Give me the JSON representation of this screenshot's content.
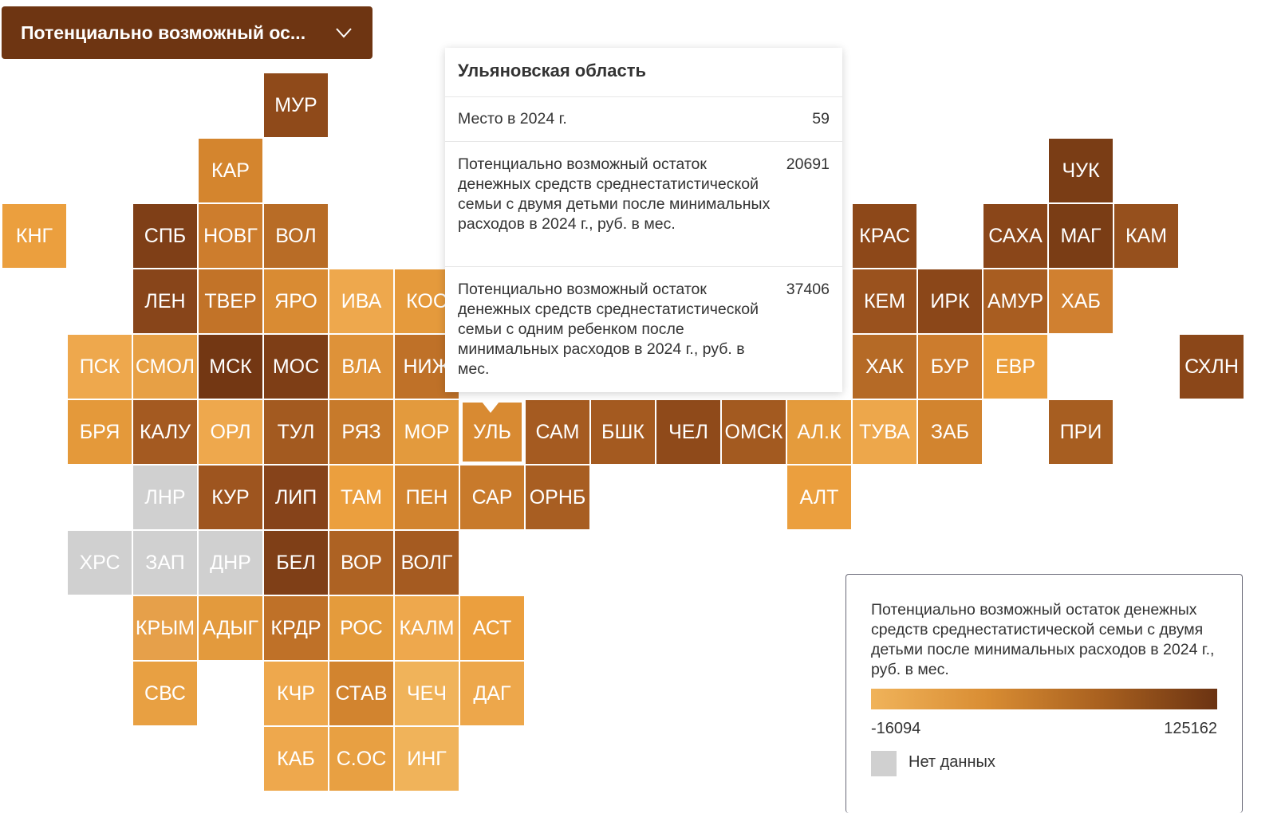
{
  "dropdown": {
    "label": "Потенциально возможный ос...",
    "icon": "chevron-down-icon"
  },
  "tiles": [
    {
      "code": "МУР",
      "col": 4,
      "row": 0,
      "color": "#8f4a1a"
    },
    {
      "code": "КАР",
      "col": 3,
      "row": 1,
      "color": "#d4852e"
    },
    {
      "code": "ЧУК",
      "col": 16,
      "row": 1,
      "color": "#7a3d15"
    },
    {
      "code": "КНГ",
      "col": 0,
      "row": 2,
      "color": "#eb9f3e"
    },
    {
      "code": "СПБ",
      "col": 2,
      "row": 2,
      "color": "#7f3f17"
    },
    {
      "code": "НОВГ",
      "col": 3,
      "row": 2,
      "color": "#cd7d2d"
    },
    {
      "code": "ВОЛ",
      "col": 4,
      "row": 2,
      "color": "#b86c26"
    },
    {
      "code": "КРАС",
      "col": 13,
      "row": 2,
      "color": "#8d4819"
    },
    {
      "code": "САХА",
      "col": 15,
      "row": 2,
      "color": "#8a4619"
    },
    {
      "code": "МАГ",
      "col": 16,
      "row": 2,
      "color": "#7a3d15"
    },
    {
      "code": "КАМ",
      "col": 17,
      "row": 2,
      "color": "#96501d"
    },
    {
      "code": "ЛЕН",
      "col": 2,
      "row": 3,
      "color": "#88451a"
    },
    {
      "code": "ТВЕР",
      "col": 3,
      "row": 3,
      "color": "#c27328"
    },
    {
      "code": "ЯРО",
      "col": 4,
      "row": 3,
      "color": "#d98b33"
    },
    {
      "code": "ИВА",
      "col": 5,
      "row": 3,
      "color": "#eea84d"
    },
    {
      "code": "КОС",
      "col": 6,
      "row": 3,
      "color": "#e59a3c"
    },
    {
      "code": "КЕМ",
      "col": 13,
      "row": 3,
      "color": "#9a521e"
    },
    {
      "code": "ИРК",
      "col": 14,
      "row": 3,
      "color": "#8b4719"
    },
    {
      "code": "АМУР",
      "col": 15,
      "row": 3,
      "color": "#a85d21"
    },
    {
      "code": "ХАБ",
      "col": 16,
      "row": 3,
      "color": "#d08030"
    },
    {
      "code": "ПСК",
      "col": 1,
      "row": 4,
      "color": "#eea84d"
    },
    {
      "code": "СМОЛ",
      "col": 2,
      "row": 4,
      "color": "#e7a045"
    },
    {
      "code": "МСК",
      "col": 3,
      "row": 4,
      "color": "#733713"
    },
    {
      "code": "МОС",
      "col": 4,
      "row": 4,
      "color": "#7e3e16"
    },
    {
      "code": "ВЛА",
      "col": 5,
      "row": 4,
      "color": "#de9239"
    },
    {
      "code": "НИЖ",
      "col": 6,
      "row": 4,
      "color": "#bf7128"
    },
    {
      "code": "ХАК",
      "col": 13,
      "row": 4,
      "color": "#b56a26"
    },
    {
      "code": "БУР",
      "col": 14,
      "row": 4,
      "color": "#cc7c2d"
    },
    {
      "code": "ЕВР",
      "col": 15,
      "row": 4,
      "color": "#eb9f3e"
    },
    {
      "code": "СХЛН",
      "col": 18,
      "row": 4,
      "color": "#8b4719"
    },
    {
      "code": "БРЯ",
      "col": 1,
      "row": 5,
      "color": "#e4993a"
    },
    {
      "code": "КАЛУ",
      "col": 2,
      "row": 5,
      "color": "#a45a21"
    },
    {
      "code": "ОРЛ",
      "col": 3,
      "row": 5,
      "color": "#eea84d"
    },
    {
      "code": "ТУЛ",
      "col": 4,
      "row": 5,
      "color": "#a35a20"
    },
    {
      "code": "РЯЗ",
      "col": 5,
      "row": 5,
      "color": "#c77a2b"
    },
    {
      "code": "МОР",
      "col": 6,
      "row": 5,
      "color": "#e39a3d"
    },
    {
      "code": "УЛЬ",
      "col": 7,
      "row": 5,
      "color": "#d88a32",
      "selected": true
    },
    {
      "code": "САМ",
      "col": 8,
      "row": 5,
      "color": "#a55b21"
    },
    {
      "code": "БШК",
      "col": 9,
      "row": 5,
      "color": "#a45a20"
    },
    {
      "code": "ЧЕЛ",
      "col": 10,
      "row": 5,
      "color": "#8f4a1a"
    },
    {
      "code": "ОМСК",
      "col": 11,
      "row": 5,
      "color": "#a35a20"
    },
    {
      "code": "АЛ.К",
      "col": 12,
      "row": 5,
      "color": "#e49b3c"
    },
    {
      "code": "ТУВА",
      "col": 13,
      "row": 5,
      "color": "#eda74b"
    },
    {
      "code": "ЗАБ",
      "col": 14,
      "row": 5,
      "color": "#d2842f"
    },
    {
      "code": "ПРИ",
      "col": 16,
      "row": 5,
      "color": "#a75e21"
    },
    {
      "code": "ЛНР",
      "col": 2,
      "row": 6,
      "color": "#d0d0d0"
    },
    {
      "code": "КУР",
      "col": 3,
      "row": 6,
      "color": "#9e551f"
    },
    {
      "code": "ЛИП",
      "col": 4,
      "row": 6,
      "color": "#86431a"
    },
    {
      "code": "ТАМ",
      "col": 5,
      "row": 6,
      "color": "#eb9f3e"
    },
    {
      "code": "ПЕН",
      "col": 6,
      "row": 6,
      "color": "#d2842f"
    },
    {
      "code": "САР",
      "col": 7,
      "row": 6,
      "color": "#c87a2b"
    },
    {
      "code": "ОРНБ",
      "col": 8,
      "row": 6,
      "color": "#a85e22"
    },
    {
      "code": "АЛТ",
      "col": 12,
      "row": 6,
      "color": "#eb9f3e"
    },
    {
      "code": "ХРС",
      "col": 1,
      "row": 7,
      "color": "#d0d0d0"
    },
    {
      "code": "ЗАП",
      "col": 2,
      "row": 7,
      "color": "#d0d0d0"
    },
    {
      "code": "ДНР",
      "col": 3,
      "row": 7,
      "color": "#d0d0d0"
    },
    {
      "code": "БЕЛ",
      "col": 4,
      "row": 7,
      "color": "#7f3f17"
    },
    {
      "code": "ВОР",
      "col": 5,
      "row": 7,
      "color": "#ad6223"
    },
    {
      "code": "ВОЛГ",
      "col": 6,
      "row": 7,
      "color": "#a55b21"
    },
    {
      "code": "КРЫМ",
      "col": 2,
      "row": 8,
      "color": "#e6a04a"
    },
    {
      "code": "АДЫГ",
      "col": 3,
      "row": 8,
      "color": "#e39a3d"
    },
    {
      "code": "КРДР",
      "col": 4,
      "row": 8,
      "color": "#bf7128"
    },
    {
      "code": "РОС",
      "col": 5,
      "row": 8,
      "color": "#e49b3c"
    },
    {
      "code": "КАЛМ",
      "col": 6,
      "row": 8,
      "color": "#eea84d"
    },
    {
      "code": "АСТ",
      "col": 7,
      "row": 8,
      "color": "#eb9f3e"
    },
    {
      "code": "СВС",
      "col": 2,
      "row": 9,
      "color": "#e8a042"
    },
    {
      "code": "КЧР",
      "col": 4,
      "row": 9,
      "color": "#eea84d"
    },
    {
      "code": "СТАВ",
      "col": 5,
      "row": 9,
      "color": "#d2842f"
    },
    {
      "code": "ЧЕЧ",
      "col": 6,
      "row": 9,
      "color": "#f0b35a"
    },
    {
      "code": "ДАГ",
      "col": 7,
      "row": 9,
      "color": "#eda74b"
    },
    {
      "code": "КАБ",
      "col": 4,
      "row": 10,
      "color": "#eea84d"
    },
    {
      "code": "С.ОС",
      "col": 5,
      "row": 10,
      "color": "#e8a042"
    },
    {
      "code": "ИНГ",
      "col": 6,
      "row": 10,
      "color": "#f0b35a"
    }
  ],
  "tooltip": {
    "title": "Ульяновская область",
    "rows": [
      {
        "label": "Место в 2024 г.",
        "value": "59"
      },
      {
        "label": "Потенциально возможный остаток денежных средств среднестатистической семьи с двумя детьми после минимальных расходов в 2024 г., руб. в мес.",
        "value": "20691"
      },
      {
        "label": "Потенциально возможный остаток денежных средств среднестатистической семьи с одним ребенком после минимальных расходов в 2024 г., руб. в мес.",
        "value": "37406"
      }
    ]
  },
  "legend": {
    "title": "Потенциально возможный остаток денежных средств среднестатистической семьи с двумя детьми после минимальных расходов в 2024 г., руб. в мес.",
    "min": "-16094",
    "max": "125162",
    "gradient": [
      "#f0b35a",
      "#d98d33",
      "#a8601f",
      "#6b3312"
    ],
    "nodata_label": "Нет данных",
    "nodata_color": "#d0d0d0"
  }
}
